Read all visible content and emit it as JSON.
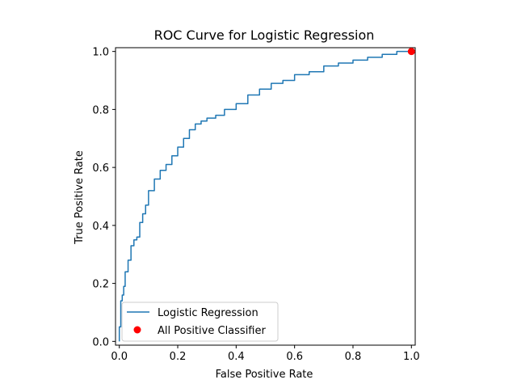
{
  "chart_data": {
    "type": "line",
    "title": "ROC Curve for Logistic Regression",
    "xlabel": "False Positive Rate",
    "ylabel": "True Positive Rate",
    "xlim": [
      0.0,
      1.0
    ],
    "ylim": [
      0.0,
      1.0
    ],
    "xticks": [
      "0.0",
      "0.2",
      "0.4",
      "0.6",
      "0.8",
      "1.0"
    ],
    "yticks": [
      "0.0",
      "0.2",
      "0.4",
      "0.6",
      "0.8",
      "1.0"
    ],
    "grid": false,
    "legend": "lower-left",
    "series": [
      {
        "name": "Logistic Regression",
        "kind": "line",
        "color": "#1f77b4",
        "x": [
          0.0,
          0.005,
          0.01,
          0.015,
          0.02,
          0.03,
          0.04,
          0.05,
          0.06,
          0.07,
          0.08,
          0.09,
          0.1,
          0.12,
          0.14,
          0.16,
          0.18,
          0.2,
          0.22,
          0.24,
          0.26,
          0.28,
          0.3,
          0.33,
          0.36,
          0.4,
          0.44,
          0.48,
          0.52,
          0.56,
          0.6,
          0.65,
          0.7,
          0.75,
          0.8,
          0.85,
          0.9,
          0.95,
          1.0
        ],
        "y": [
          0.0,
          0.05,
          0.14,
          0.16,
          0.19,
          0.24,
          0.28,
          0.33,
          0.35,
          0.36,
          0.41,
          0.44,
          0.47,
          0.52,
          0.56,
          0.59,
          0.61,
          0.64,
          0.67,
          0.7,
          0.73,
          0.75,
          0.76,
          0.77,
          0.78,
          0.8,
          0.82,
          0.85,
          0.87,
          0.89,
          0.9,
          0.92,
          0.93,
          0.95,
          0.96,
          0.97,
          0.98,
          0.99,
          1.0
        ]
      },
      {
        "name": "All Positive Classifier",
        "kind": "scatter",
        "color": "#ff0000",
        "x": [
          1.0
        ],
        "y": [
          1.0
        ]
      }
    ]
  }
}
